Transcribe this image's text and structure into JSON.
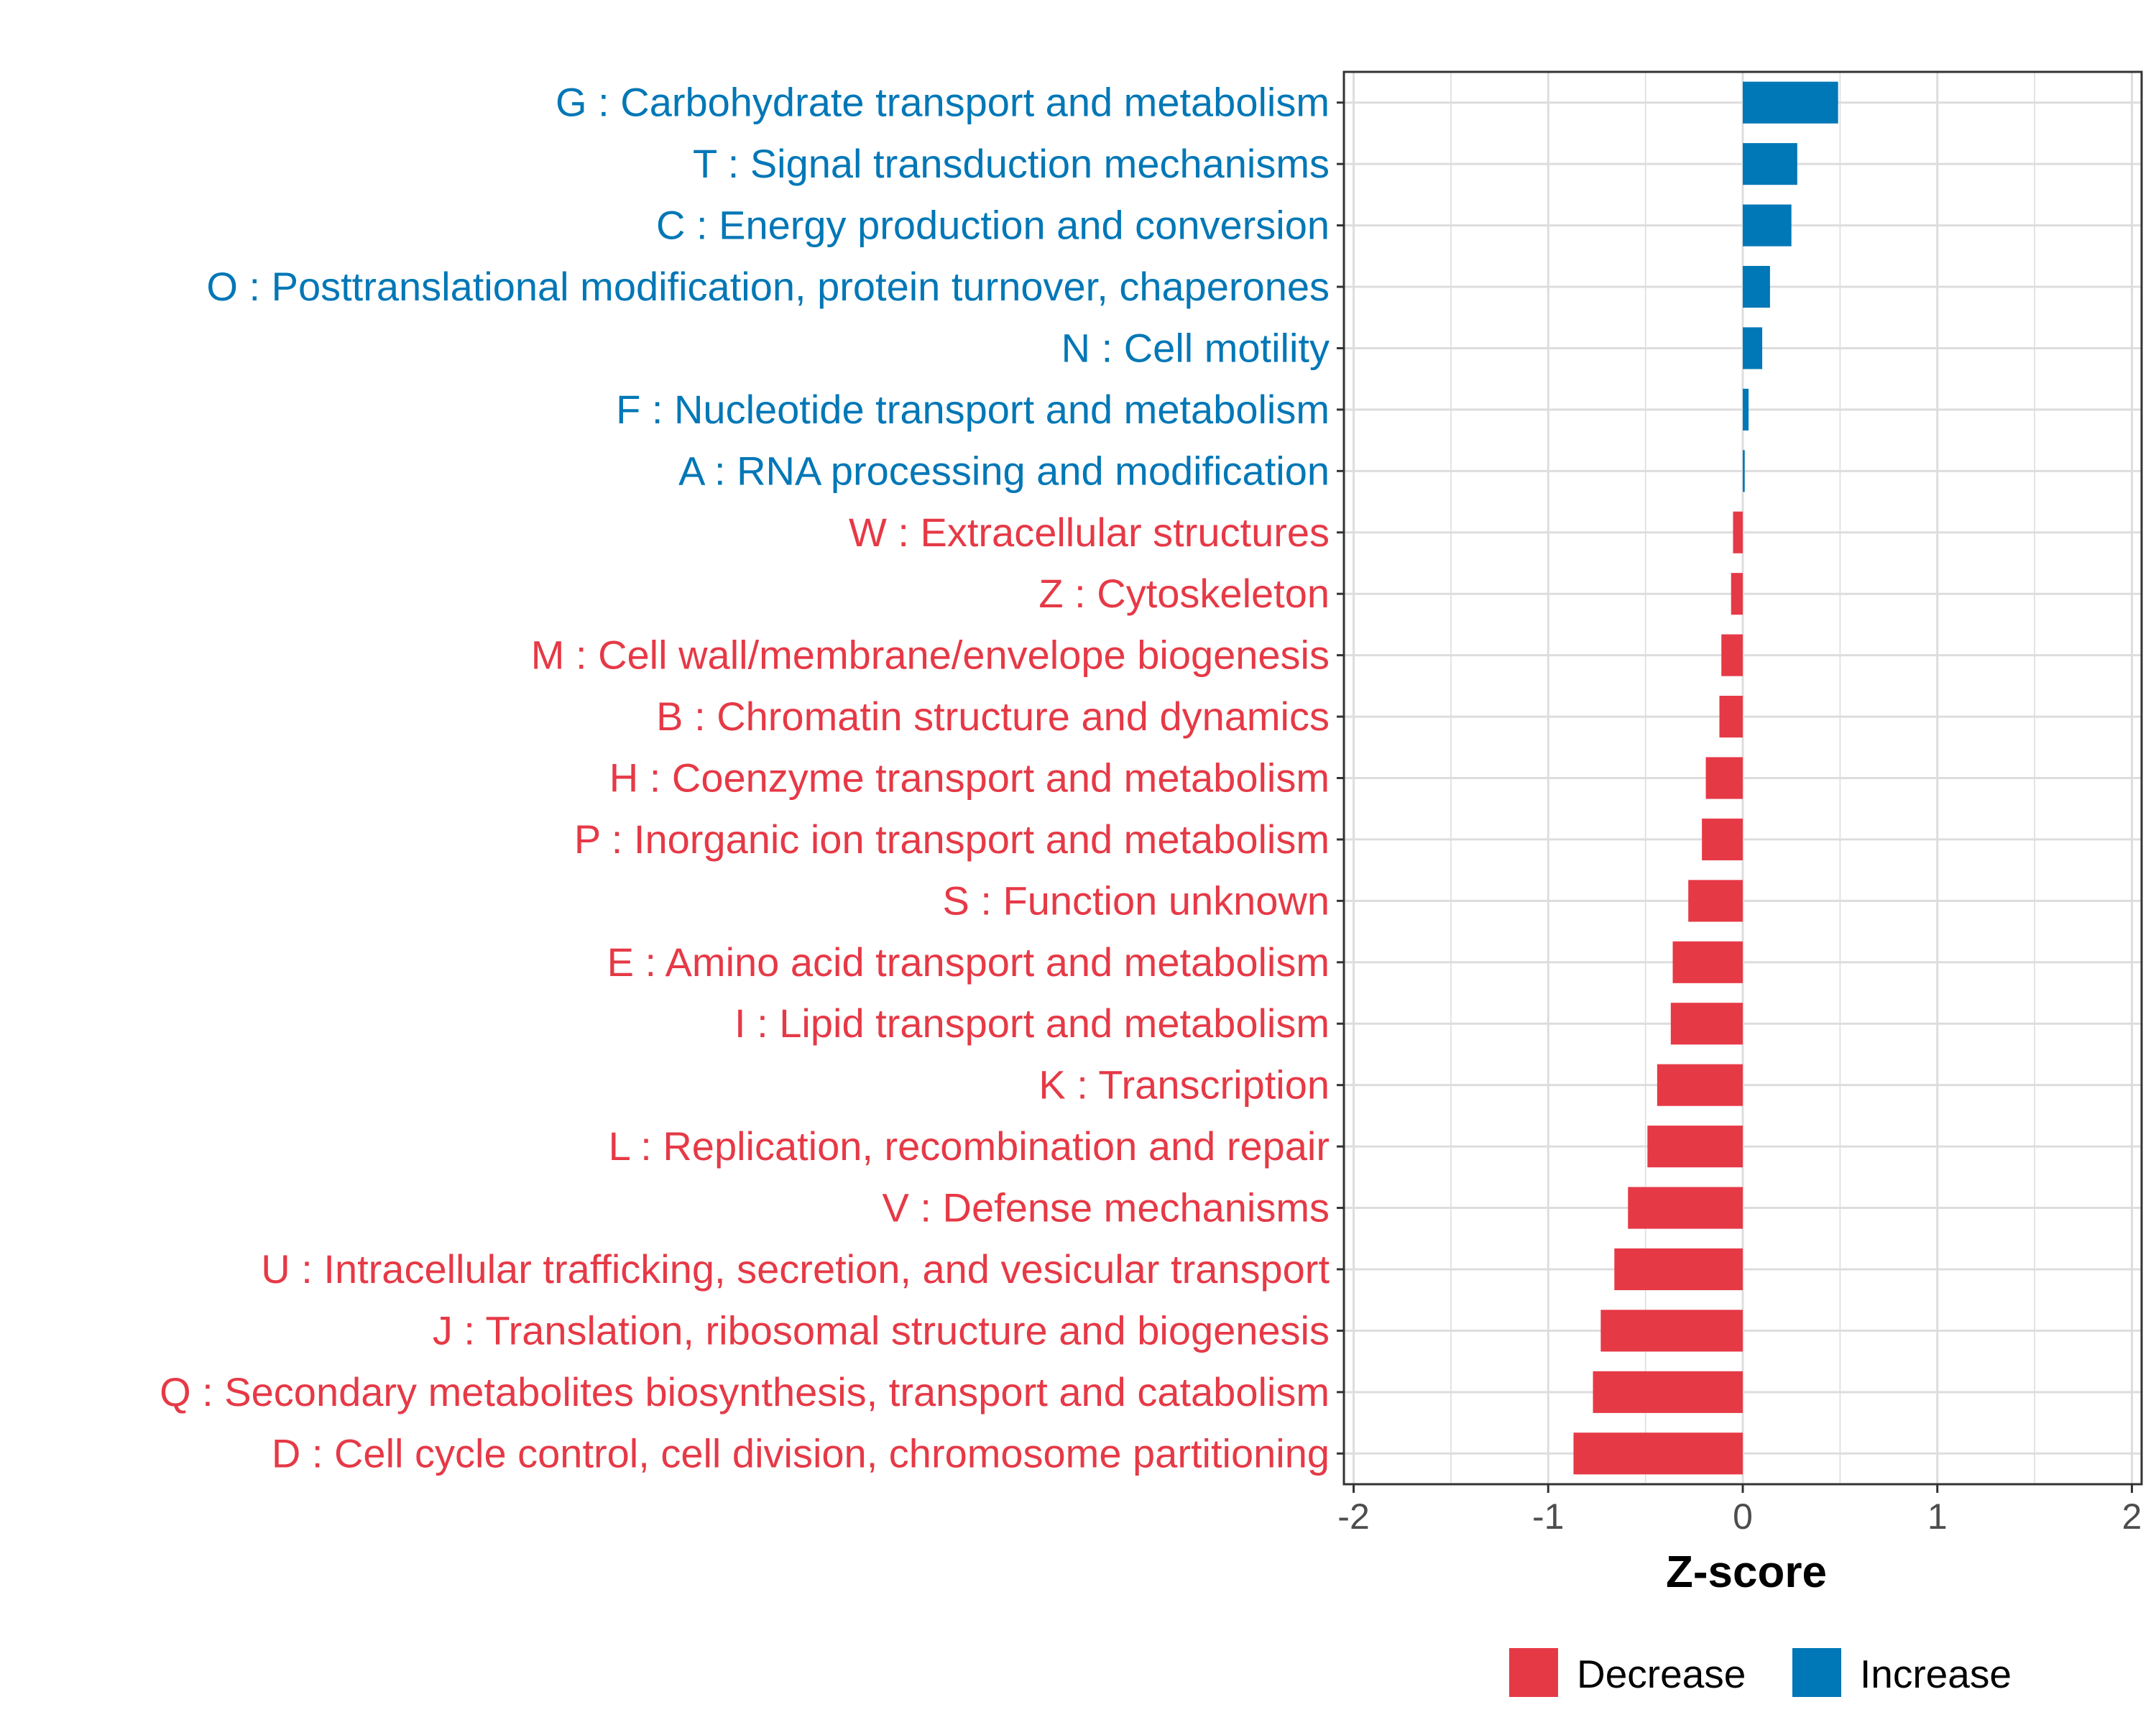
{
  "chart_data": {
    "type": "bar",
    "orientation": "horizontal",
    "title": "",
    "xlabel": "Z-score",
    "ylabel": "",
    "xlim": [
      -2.05,
      2.05
    ],
    "xticks": [
      -2,
      -1,
      0,
      1,
      2
    ],
    "xtick_labels": [
      "-2",
      "-1",
      "0",
      "1",
      "2"
    ],
    "grid": true,
    "categories": [
      "G : Carbohydrate transport and metabolism",
      "T : Signal transduction mechanisms",
      "C : Energy production and conversion",
      "O : Posttranslational modification, protein turnover, chaperones",
      "N : Cell motility",
      "F : Nucleotide transport and metabolism",
      "A : RNA processing and modification",
      "W : Extracellular structures",
      "Z : Cytoskeleton",
      "M : Cell wall/membrane/envelope biogenesis",
      "B : Chromatin structure and dynamics",
      "H : Coenzyme transport and metabolism",
      "P : Inorganic ion transport and metabolism",
      "S : Function unknown",
      "E : Amino acid transport and metabolism",
      "I : Lipid transport and metabolism",
      "K : Transcription",
      "L : Replication, recombination and repair",
      "V : Defense mechanisms",
      "U : Intracellular trafficking, secretion, and vesicular transport",
      "J : Translation, ribosomal structure and biogenesis",
      "Q : Secondary metabolites biosynthesis, transport and catabolism",
      "D : Cell cycle control, cell division, chromosome partitioning"
    ],
    "values": [
      0.49,
      0.28,
      0.25,
      0.14,
      0.1,
      0.03,
      0.01,
      -0.05,
      -0.06,
      -0.11,
      -0.12,
      -0.19,
      -0.21,
      -0.28,
      -0.36,
      -0.37,
      -0.44,
      -0.49,
      -0.59,
      -0.66,
      -0.73,
      -0.77,
      -0.87
    ],
    "groups": [
      "Increase",
      "Increase",
      "Increase",
      "Increase",
      "Increase",
      "Increase",
      "Increase",
      "Decrease",
      "Decrease",
      "Decrease",
      "Decrease",
      "Decrease",
      "Decrease",
      "Decrease",
      "Decrease",
      "Decrease",
      "Decrease",
      "Decrease",
      "Decrease",
      "Decrease",
      "Decrease",
      "Decrease",
      "Decrease"
    ],
    "legend": {
      "position": "bottom",
      "entries": [
        {
          "name": "Decrease",
          "color": "#e63946"
        },
        {
          "name": "Increase",
          "color": "#0077b6"
        }
      ]
    }
  }
}
